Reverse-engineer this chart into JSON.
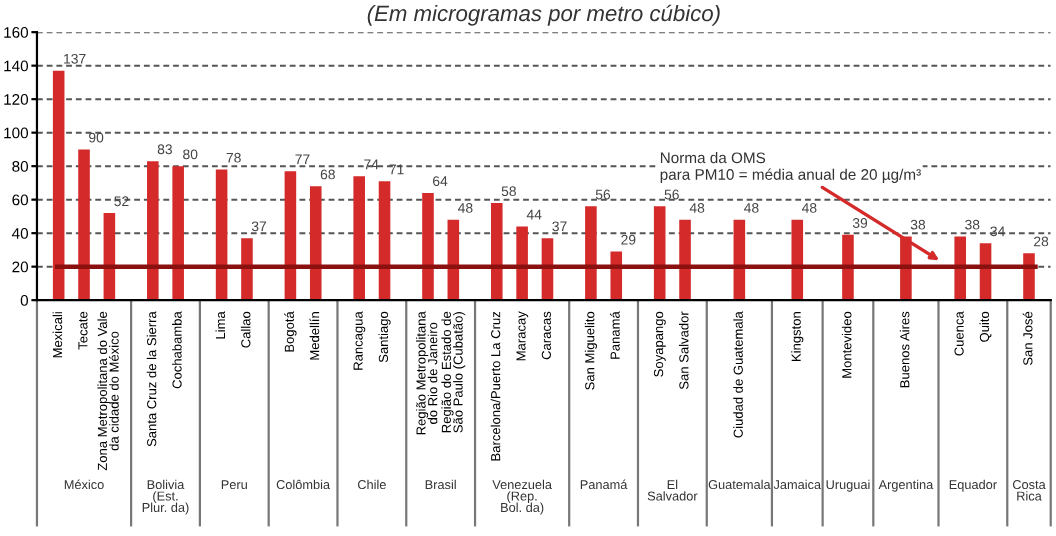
{
  "chart_data": {
    "type": "bar",
    "title": "(Em microgramas por metro cúbico)",
    "categories": [
      "Mexicali",
      "Tecate",
      "Zona Metropolitana do Vale\nda cidade do México",
      "Santa Cruz de la Sierra",
      "Cochabamba",
      "Lima",
      "Callao",
      "Bogotá",
      "Medellín",
      "Rancagua",
      "Santiago",
      "Região Metropolitana\ndo Rio de Janeiro",
      "Região do Estado de\nSão Paulo (Cubatão)",
      "Barcelona/Puerto La Cruz",
      "Maracay",
      "Caracas",
      "San Miguelito",
      "Panamá",
      "Soyapango",
      "San Salvador",
      "Ciudad de Guatemala",
      "Kingston",
      "Montevideo",
      "Buenos Aires",
      "Cuenca",
      "Quito",
      "San José"
    ],
    "values": [
      137,
      90,
      52,
      83,
      80,
      78,
      37,
      77,
      68,
      74,
      71,
      64,
      48,
      58,
      44,
      37,
      56,
      29,
      56,
      48,
      48,
      48,
      39,
      38,
      38,
      34,
      28
    ],
    "color": "#d42a2a",
    "data_labels": true,
    "ylim": [
      0,
      160
    ],
    "yticks": [
      0,
      20,
      40,
      60,
      80,
      100,
      120,
      140,
      160
    ],
    "grid": "y",
    "ref_lines": [
      {
        "axis": "y",
        "value": 20,
        "label": "Norma da OMS\npara PM10 = média anual de 20 µg/m³",
        "color": "#8b1010"
      }
    ],
    "annotations": [
      "México",
      "Bolivia\n(Est.\nPlur. da)",
      "Peru",
      "Colômbia",
      "Chile",
      "Brasil",
      "Venezuela\n(Rep.\nBol. da)",
      "Panamá",
      "El\nSalvador",
      "Guatemala",
      "Jamaica",
      "Uruguai",
      "Argentina",
      "Equador",
      "Costa\nRica"
    ]
  }
}
